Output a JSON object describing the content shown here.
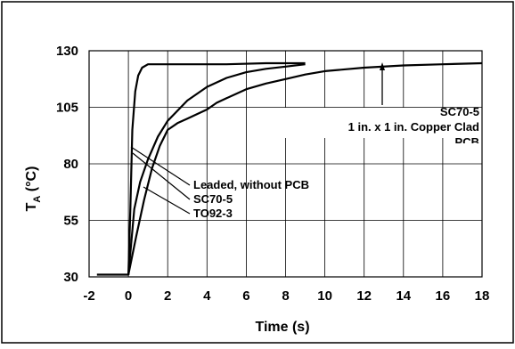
{
  "chart_data": {
    "type": "line",
    "xlabel": "Time (s)",
    "ylabel_main": "T",
    "ylabel_sub": "A",
    "ylabel_unit": " (°C)",
    "xlim": [
      -2,
      18
    ],
    "ylim": [
      30,
      130
    ],
    "x_ticks": [
      -2,
      0,
      2,
      4,
      6,
      8,
      10,
      12,
      14,
      16,
      18
    ],
    "y_ticks": [
      30,
      55,
      80,
      105,
      130
    ],
    "grid": true,
    "series": [
      {
        "name": "Leaded, without PCB",
        "x": [
          -1.6,
          -0.5,
          0.0,
          0.1,
          0.2,
          0.35,
          0.5,
          0.7,
          1.0,
          1.5,
          2.0,
          3.0,
          5.0,
          7.0,
          9.0
        ],
        "y": [
          31,
          31,
          31,
          60,
          95,
          112,
          119,
          122.5,
          124,
          124,
          124,
          124,
          124,
          124.5,
          124.5
        ]
      },
      {
        "name": "SC70-5",
        "x": [
          0.0,
          0.3,
          0.6,
          1.0,
          1.5,
          2.0,
          3.0,
          4.0,
          5.0,
          6.0,
          7.0,
          8.0,
          9.0
        ],
        "y": [
          31,
          60,
          72,
          82,
          92,
          99,
          108,
          114,
          118,
          120.5,
          122,
          123,
          124
        ]
      },
      {
        "name": "TO92-3",
        "x": [
          0.0,
          0.4,
          0.8,
          1.2,
          1.6,
          2.0,
          2.5,
          3.0,
          4.0,
          4.5,
          5.0,
          6.0,
          7.0,
          8.0,
          9.0,
          10.0,
          12.0,
          14.0,
          16.0,
          18.0
        ],
        "y": [
          31,
          48,
          64,
          78,
          88,
          95,
          98,
          100,
          104,
          107,
          109,
          113,
          115.5,
          117.5,
          119.5,
          121,
          122.5,
          123.5,
          124,
          124.5
        ]
      }
    ],
    "annotations": [
      {
        "id": "ann-sc70-pcb-1",
        "text": "SC70-5"
      },
      {
        "id": "ann-sc70-pcb-2",
        "text": "1 in. x 1 in. Copper Clad"
      },
      {
        "id": "ann-sc70-pcb-3",
        "text": "PCB"
      },
      {
        "id": "ann-leaded",
        "text": "Leaded, without PCB"
      },
      {
        "id": "ann-sc70",
        "text": "SC70-5"
      },
      {
        "id": "ann-to92",
        "text": "TO92-3"
      }
    ]
  }
}
